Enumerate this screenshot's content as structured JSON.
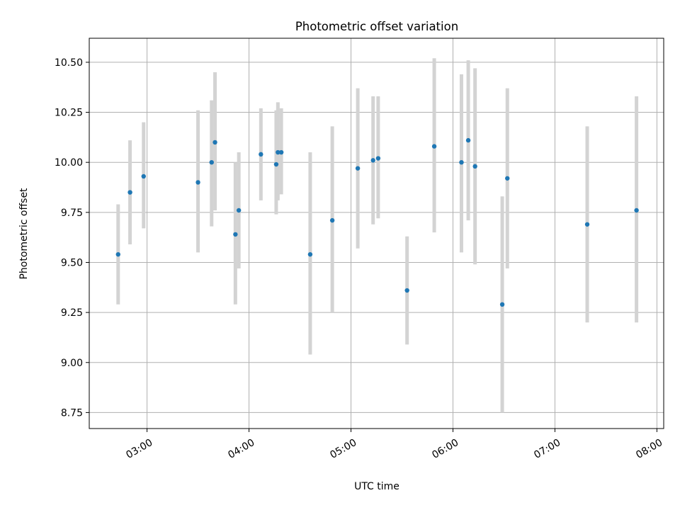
{
  "chart_data": {
    "type": "scatter",
    "title": "Photometric offset variation",
    "xlabel": "UTC time",
    "ylabel": "Photometric offset",
    "xlim": [
      "02:26",
      "08:04"
    ],
    "ylim": [
      8.67,
      10.62
    ],
    "grid": true,
    "x_ticks": [
      {
        "value": "03:00",
        "label": "03:00"
      },
      {
        "value": "04:00",
        "label": "04:00"
      },
      {
        "value": "05:00",
        "label": "05:00"
      },
      {
        "value": "06:00",
        "label": "06:00"
      },
      {
        "value": "07:00",
        "label": "07:00"
      },
      {
        "value": "08:00",
        "label": "08:00"
      }
    ],
    "y_ticks": [
      {
        "value": 8.75,
        "label": "8.75"
      },
      {
        "value": 9.0,
        "label": "9.00"
      },
      {
        "value": 9.25,
        "label": "9.25"
      },
      {
        "value": 9.5,
        "label": "9.50"
      },
      {
        "value": 9.75,
        "label": "9.75"
      },
      {
        "value": 10.0,
        "label": "10.00"
      },
      {
        "value": 10.25,
        "label": "10.25"
      },
      {
        "value": 10.5,
        "label": "10.50"
      }
    ],
    "series": [
      {
        "marker_color": "#1f77b4",
        "errorbar_color": "#d3d3d3",
        "points": [
          {
            "x": "02:43",
            "y": 9.54,
            "low": 9.29,
            "high": 9.79
          },
          {
            "x": "02:50",
            "y": 9.85,
            "low": 9.59,
            "high": 10.11
          },
          {
            "x": "02:58",
            "y": 9.93,
            "low": 9.67,
            "high": 10.2
          },
          {
            "x": "03:30",
            "y": 9.9,
            "low": 9.55,
            "high": 10.26
          },
          {
            "x": "03:38",
            "y": 10.0,
            "low": 9.68,
            "high": 10.31
          },
          {
            "x": "03:40",
            "y": 10.1,
            "low": 9.76,
            "high": 10.45
          },
          {
            "x": "03:52",
            "y": 9.64,
            "low": 9.29,
            "high": 10.0
          },
          {
            "x": "03:54",
            "y": 9.76,
            "low": 9.47,
            "high": 10.05
          },
          {
            "x": "04:07",
            "y": 10.04,
            "low": 9.81,
            "high": 10.27
          },
          {
            "x": "04:16",
            "y": 9.99,
            "low": 9.74,
            "high": 10.26
          },
          {
            "x": "04:17",
            "y": 10.05,
            "low": 9.81,
            "high": 10.3
          },
          {
            "x": "04:19",
            "y": 10.05,
            "low": 9.84,
            "high": 10.27
          },
          {
            "x": "04:36",
            "y": 9.54,
            "low": 9.04,
            "high": 10.05
          },
          {
            "x": "04:49",
            "y": 9.71,
            "low": 9.25,
            "high": 10.18
          },
          {
            "x": "05:04",
            "y": 9.97,
            "low": 9.57,
            "high": 10.37
          },
          {
            "x": "05:13",
            "y": 10.01,
            "low": 9.69,
            "high": 10.33
          },
          {
            "x": "05:16",
            "y": 10.02,
            "low": 9.72,
            "high": 10.33
          },
          {
            "x": "05:33",
            "y": 9.36,
            "low": 9.09,
            "high": 9.63
          },
          {
            "x": "05:49",
            "y": 10.08,
            "low": 9.65,
            "high": 10.52
          },
          {
            "x": "06:05",
            "y": 10.0,
            "low": 9.55,
            "high": 10.44
          },
          {
            "x": "06:09",
            "y": 10.11,
            "low": 9.71,
            "high": 10.51
          },
          {
            "x": "06:13",
            "y": 9.98,
            "low": 9.49,
            "high": 10.47
          },
          {
            "x": "06:29",
            "y": 9.29,
            "low": 8.75,
            "high": 9.83
          },
          {
            "x": "06:32",
            "y": 9.92,
            "low": 9.47,
            "high": 10.37
          },
          {
            "x": "07:19",
            "y": 9.69,
            "low": 9.2,
            "high": 10.18
          },
          {
            "x": "07:48",
            "y": 9.76,
            "low": 9.2,
            "high": 10.33
          }
        ]
      }
    ]
  }
}
